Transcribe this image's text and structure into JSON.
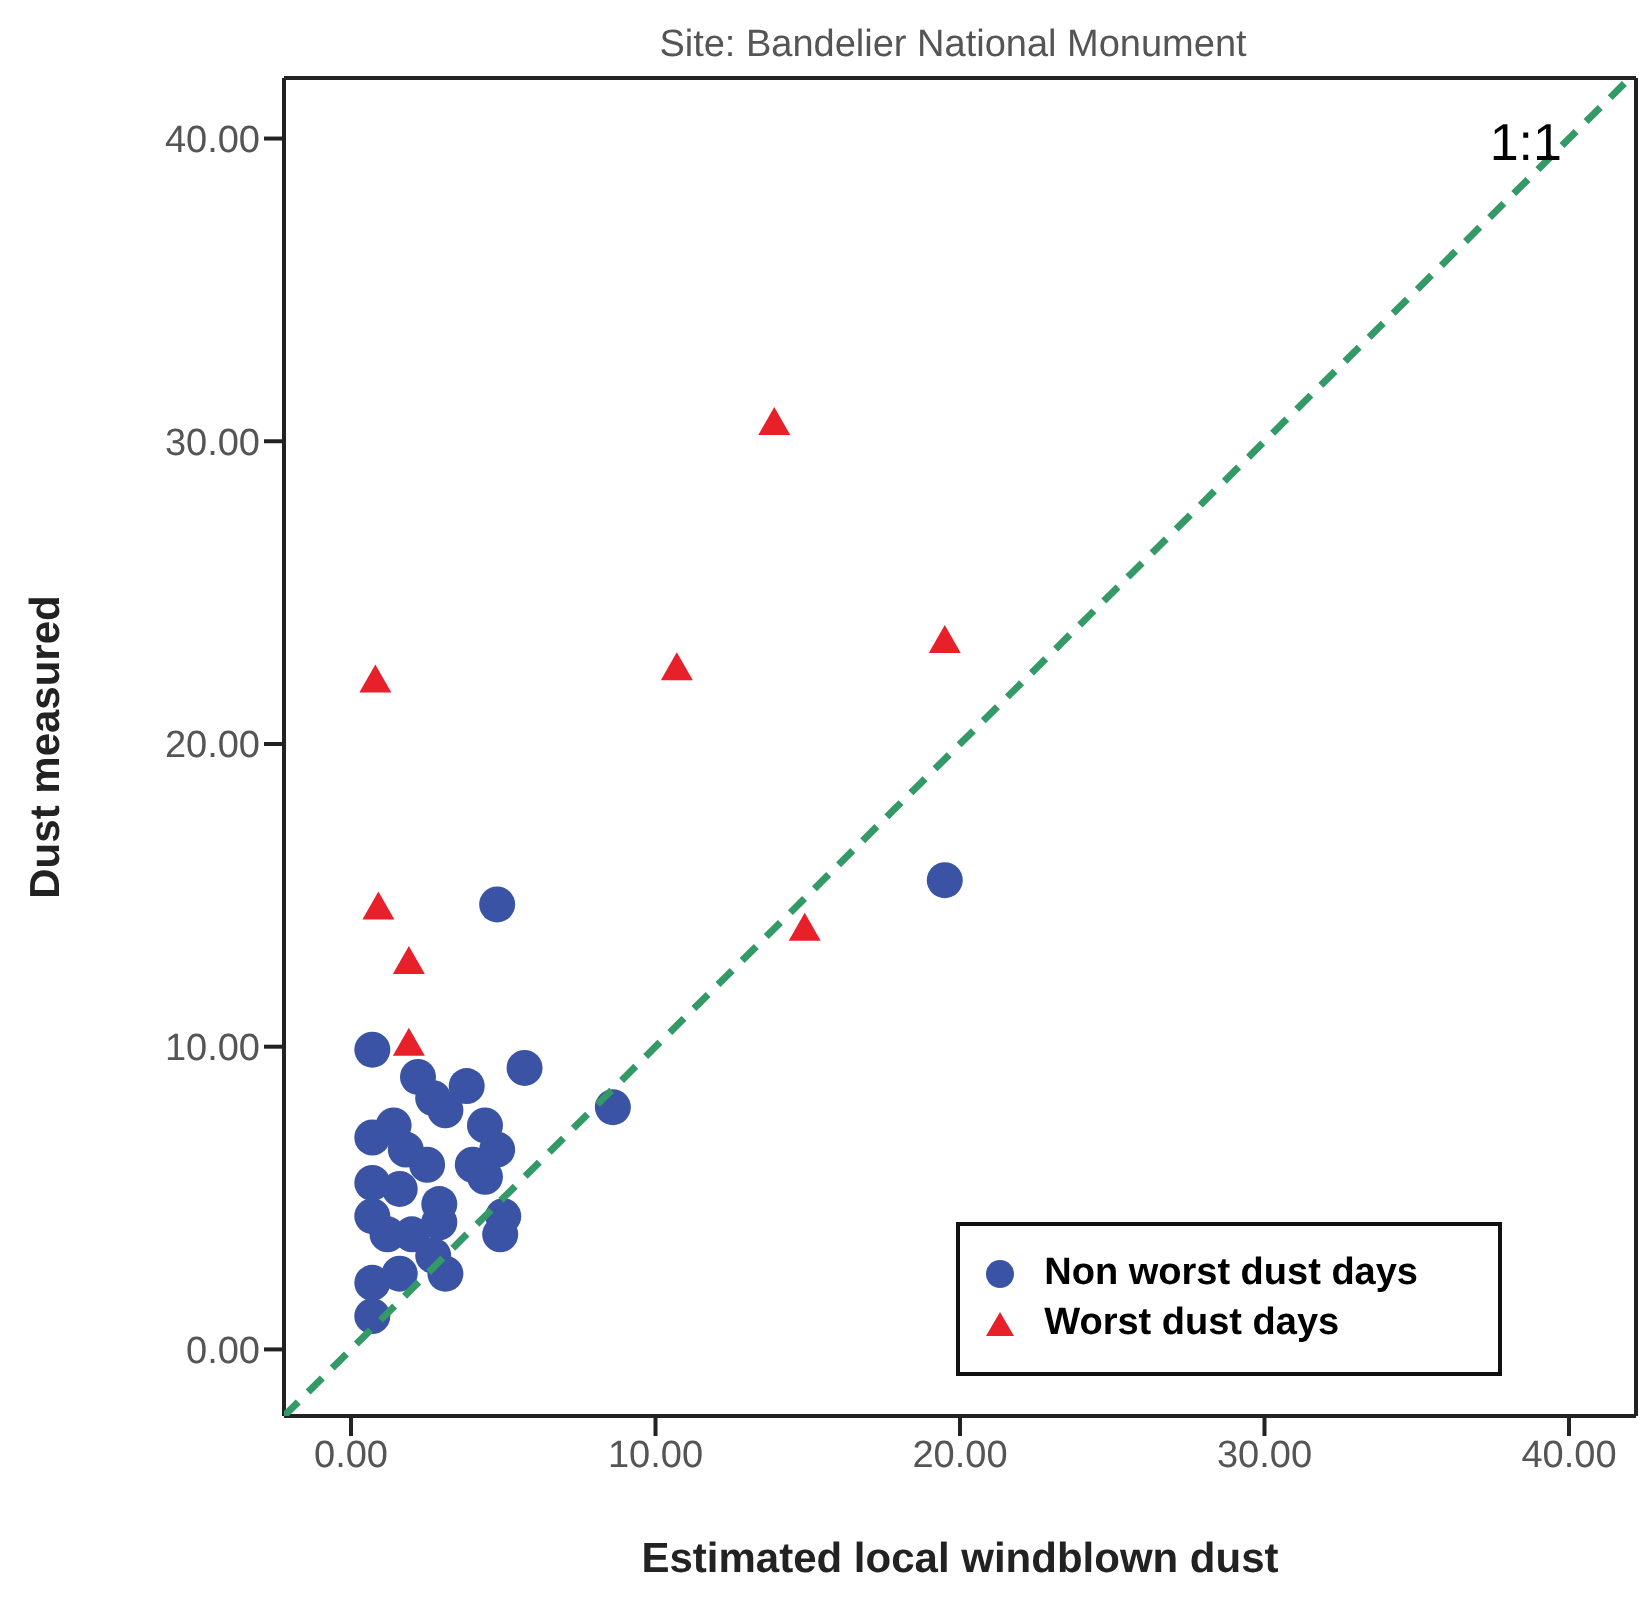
{
  "chart_data": {
    "type": "scatter",
    "title": "Site: Bandelier National Monument",
    "xlabel": "Estimated local windblown dust",
    "ylabel": "Dust measured",
    "xlim": [
      -2.2,
      42.2
    ],
    "ylim": [
      -2.2,
      42.0
    ],
    "xticks": [
      {
        "value": 0,
        "label": "0.00"
      },
      {
        "value": 10,
        "label": "10.00"
      },
      {
        "value": 20,
        "label": "20.00"
      },
      {
        "value": 30,
        "label": "30.00"
      },
      {
        "value": 40,
        "label": "40.00"
      }
    ],
    "yticks": [
      {
        "value": 0,
        "label": "0.00"
      },
      {
        "value": 10,
        "label": "10.00"
      },
      {
        "value": 20,
        "label": "20.00"
      },
      {
        "value": 30,
        "label": "30.00"
      },
      {
        "value": 40,
        "label": "40.00"
      }
    ],
    "legend": "bottom right",
    "annotations": [
      "1:1"
    ],
    "series": [
      {
        "name": "Non worst dust days",
        "color": "#3a53a4",
        "marker": "circle",
        "x": [
          4.8,
          0.7,
          5.7,
          8.6,
          5.0,
          4.9,
          19.5,
          2.2,
          3.8,
          3.1,
          4.8,
          4.4,
          2.9,
          0.7,
          0.7,
          0.7,
          1.8,
          1.6,
          2.0,
          2.7,
          0.7,
          0.7,
          1.6,
          3.1,
          2.7,
          1.4,
          4.4,
          4.0,
          2.5,
          1.2,
          2.9
        ],
        "values": [
          14.7,
          9.9,
          9.3,
          8.0,
          4.4,
          3.8,
          15.5,
          9.0,
          8.7,
          7.9,
          6.6,
          5.7,
          4.8,
          7.0,
          5.5,
          4.4,
          6.6,
          5.3,
          3.8,
          3.1,
          2.2,
          1.1,
          2.5,
          2.5,
          8.3,
          7.4,
          7.4,
          6.1,
          6.1,
          3.8,
          4.2
        ]
      },
      {
        "name": "Worst dust days",
        "color": "#e8202a",
        "marker": "triangle",
        "x": [
          0.8,
          0.9,
          1.9,
          1.9,
          10.7,
          13.9,
          14.9,
          19.5
        ],
        "values": [
          22.1,
          14.6,
          12.8,
          10.1,
          22.5,
          30.6,
          13.9,
          23.4
        ]
      },
      {
        "type": "line",
        "color": "#339966",
        "line_style": "dashed",
        "marker": "none",
        "x": [
          -2.2,
          42.0
        ],
        "values": [
          -2.2,
          42.0
        ]
      }
    ]
  }
}
